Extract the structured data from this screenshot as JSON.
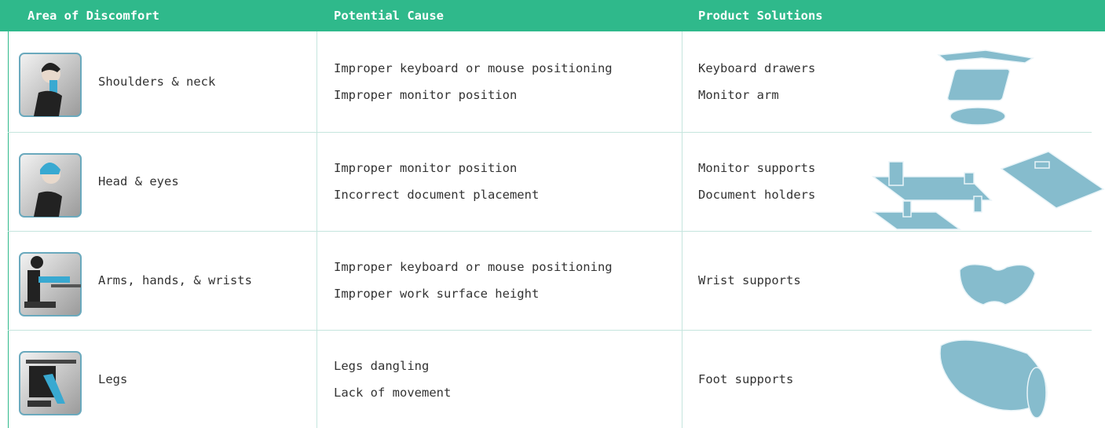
{
  "table": {
    "headers": [
      "Area of Discomfort",
      "Potential Cause",
      "Product Solutions"
    ],
    "rows": [
      {
        "area": "Shoulders & neck",
        "causes": [
          "Improper keyboard or mouse positioning",
          "Improper monitor position"
        ],
        "solutions": [
          "Keyboard drawers",
          "Monitor arm"
        ]
      },
      {
        "area": "Head & eyes",
        "causes": [
          "Improper monitor position",
          "Incorrect document placement"
        ],
        "solutions": [
          "Monitor supports",
          "Document holders"
        ]
      },
      {
        "area": "Arms, hands, & wrists",
        "causes": [
          "Improper keyboard or mouse positioning",
          "Improper work surface height"
        ],
        "solutions": [
          "Wrist supports"
        ]
      },
      {
        "area": "Legs",
        "causes": [
          "Legs dangling",
          "Lack of movement"
        ],
        "solutions": [
          "Foot supports"
        ]
      }
    ]
  }
}
